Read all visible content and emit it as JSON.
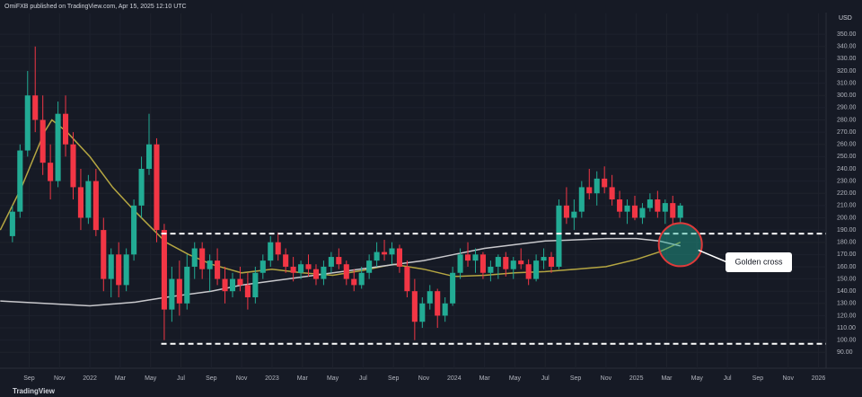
{
  "chart_data": {
    "type": "candlestick",
    "title": "OmiFXB published on TradingView.com, Apr 15, 2025 12:10 UTC",
    "y_axis_label": "USD",
    "source": "TradingView",
    "up_color": "#22ab94",
    "down_color": "#f23645",
    "x": [
      -5.1,
      -4.6,
      -4.1,
      -3.6,
      -3.1,
      -2.6,
      -2.1,
      -1.6,
      -1.1,
      -0.6,
      -0.1,
      0.4,
      0.9,
      1.4,
      1.9,
      2.4,
      2.9,
      3.4,
      3.9,
      4.4,
      4.9,
      5.4,
      5.9,
      6.4,
      6.9,
      7.4,
      7.9,
      8.4,
      8.9,
      9.4,
      9.9,
      10.4,
      10.9,
      11.4,
      11.9,
      12.4,
      12.9,
      13.4,
      13.9,
      14.4,
      14.9,
      15.4,
      15.9,
      16.4,
      16.9,
      17.4,
      17.9,
      18.4,
      18.9,
      19.4,
      19.9,
      20.4,
      20.9,
      21.4,
      21.9,
      22.4,
      22.9,
      23.4,
      23.9,
      24.4,
      24.9,
      25.4,
      25.9,
      26.4,
      26.9,
      27.4,
      27.9,
      28.4,
      28.9,
      29.4,
      29.9,
      30.4,
      30.9,
      31.4,
      31.9,
      32.4,
      32.9,
      33.4,
      33.9,
      34.4,
      34.9,
      35.4,
      35.9,
      36.4,
      36.9,
      37.4,
      37.9,
      38.4,
      38.9
    ],
    "open": [
      185,
      205,
      255,
      300,
      280,
      245,
      230,
      285,
      260,
      225,
      200,
      230,
      190,
      150,
      170,
      145,
      170,
      210,
      240,
      260,
      190,
      125,
      150,
      130,
      160,
      175,
      158,
      165,
      150,
      140,
      150,
      145,
      135,
      155,
      165,
      180,
      170,
      160,
      155,
      162,
      158,
      150,
      160,
      168,
      162,
      150,
      145,
      155,
      165,
      172,
      170,
      175,
      160,
      140,
      115,
      130,
      140,
      120,
      130,
      155,
      170,
      165,
      170,
      155,
      160,
      168,
      158,
      165,
      162,
      150,
      165,
      168,
      160,
      210,
      200,
      205,
      225,
      220,
      232,
      225,
      215,
      205,
      210,
      200,
      208,
      215,
      205,
      212,
      200
    ],
    "high": [
      210,
      260,
      320,
      340,
      300,
      260,
      295,
      300,
      270,
      240,
      235,
      240,
      200,
      175,
      180,
      175,
      215,
      250,
      285,
      265,
      195,
      160,
      165,
      170,
      180,
      180,
      170,
      175,
      160,
      155,
      160,
      155,
      160,
      170,
      185,
      188,
      175,
      168,
      165,
      170,
      162,
      165,
      172,
      175,
      165,
      158,
      160,
      170,
      180,
      182,
      180,
      178,
      165,
      150,
      135,
      145,
      142,
      135,
      160,
      175,
      180,
      175,
      172,
      165,
      170,
      172,
      168,
      175,
      166,
      170,
      175,
      172,
      215,
      225,
      215,
      230,
      240,
      238,
      242,
      235,
      222,
      215,
      218,
      212,
      220,
      222,
      215,
      218,
      212
    ],
    "low": [
      180,
      200,
      250,
      270,
      235,
      215,
      225,
      250,
      215,
      190,
      195,
      185,
      140,
      135,
      135,
      140,
      165,
      200,
      235,
      180,
      100,
      115,
      120,
      125,
      150,
      150,
      140,
      145,
      130,
      135,
      140,
      125,
      130,
      150,
      160,
      165,
      155,
      148,
      150,
      152,
      145,
      145,
      155,
      158,
      145,
      140,
      142,
      150,
      160,
      165,
      162,
      155,
      135,
      100,
      110,
      125,
      110,
      115,
      128,
      150,
      160,
      155,
      150,
      148,
      150,
      152,
      150,
      158,
      145,
      148,
      158,
      155,
      158,
      195,
      190,
      200,
      215,
      210,
      220,
      210,
      200,
      195,
      198,
      195,
      205,
      200,
      195,
      195,
      195
    ],
    "close": [
      205,
      255,
      300,
      280,
      245,
      230,
      285,
      260,
      225,
      200,
      230,
      190,
      150,
      170,
      145,
      170,
      210,
      240,
      260,
      190,
      125,
      150,
      130,
      160,
      175,
      158,
      165,
      150,
      140,
      150,
      145,
      135,
      155,
      165,
      180,
      170,
      160,
      155,
      162,
      158,
      150,
      160,
      168,
      162,
      150,
      145,
      155,
      165,
      172,
      170,
      175,
      160,
      140,
      115,
      130,
      140,
      120,
      130,
      155,
      170,
      165,
      170,
      155,
      160,
      168,
      158,
      165,
      162,
      150,
      165,
      168,
      160,
      210,
      200,
      205,
      225,
      220,
      232,
      225,
      215,
      205,
      210,
      200,
      208,
      215,
      205,
      212,
      200,
      210
    ],
    "series": [
      {
        "name": "MA 50",
        "color": "#b5a642",
        "x": [
          -5.9,
          -4.5,
          -3,
          -2.5,
          -1.5,
          0,
          1.5,
          3,
          5,
          6.5,
          8,
          10,
          12,
          14,
          16,
          18,
          20,
          22,
          24,
          26,
          28,
          30,
          32,
          34,
          36,
          37.5,
          38.9
        ],
        "values": [
          190,
          225,
          270,
          280,
          270,
          250,
          225,
          205,
          180,
          170,
          162,
          155,
          158,
          155,
          153,
          157,
          162,
          158,
          152,
          153,
          155,
          156,
          158,
          160,
          166,
          172,
          180
        ]
      },
      {
        "name": "MA 200",
        "color": "#c8c8cc",
        "x": [
          -5.9,
          -3,
          0,
          3,
          5,
          8,
          10,
          13,
          16,
          19,
          22,
          24,
          26,
          28,
          30,
          32,
          34,
          36,
          37.5,
          38.9
        ],
        "values": [
          132,
          130,
          128,
          131,
          135,
          140,
          145,
          150,
          155,
          160,
          165,
          170,
          175,
          178,
          181,
          182,
          183,
          183,
          181,
          177
        ]
      }
    ],
    "hlines": [
      187,
      97
    ],
    "hline_start": 4.7,
    "annotation": {
      "text": "Golden cross",
      "x": 38.9,
      "y": 178
    },
    "xlim": [
      -5.92,
      48.5
    ],
    "xticks": [
      {
        "value": -4,
        "label": "Sep"
      },
      {
        "value": -2,
        "label": "Nov"
      },
      {
        "value": 0,
        "label": "2022"
      },
      {
        "value": 2,
        "label": "Mar"
      },
      {
        "value": 4,
        "label": "May"
      },
      {
        "value": 6,
        "label": "Jul"
      },
      {
        "value": 8,
        "label": "Sep"
      },
      {
        "value": 10,
        "label": "Nov"
      },
      {
        "value": 12,
        "label": "2023"
      },
      {
        "value": 14,
        "label": "Mar"
      },
      {
        "value": 16,
        "label": "May"
      },
      {
        "value": 18,
        "label": "Jul"
      },
      {
        "value": 20,
        "label": "Sep"
      },
      {
        "value": 22,
        "label": "Nov"
      },
      {
        "value": 24,
        "label": "2024"
      },
      {
        "value": 26,
        "label": "Mar"
      },
      {
        "value": 28,
        "label": "May"
      },
      {
        "value": 30,
        "label": "Jul"
      },
      {
        "value": 32,
        "label": "Sep"
      },
      {
        "value": 34,
        "label": "Nov"
      },
      {
        "value": 36,
        "label": "2025"
      },
      {
        "value": 38,
        "label": "Mar"
      },
      {
        "value": 40,
        "label": "May"
      },
      {
        "value": 42,
        "label": "Jul"
      },
      {
        "value": 44,
        "label": "Sep"
      },
      {
        "value": 46,
        "label": "Nov"
      },
      {
        "value": 48,
        "label": "2026"
      }
    ],
    "ylim": [
      77,
      367
    ],
    "yticks": [
      {
        "value": 90,
        "label": "90.00"
      },
      {
        "value": 100,
        "label": "100.00"
      },
      {
        "value": 110,
        "label": "110.00"
      },
      {
        "value": 120,
        "label": "120.00"
      },
      {
        "value": 130,
        "label": "130.00"
      },
      {
        "value": 140,
        "label": "140.00"
      },
      {
        "value": 150,
        "label": "150.00"
      },
      {
        "value": 160,
        "label": "160.00"
      },
      {
        "value": 170,
        "label": "170.00"
      },
      {
        "value": 180,
        "label": "180.00"
      },
      {
        "value": 190,
        "label": "190.00"
      },
      {
        "value": 200,
        "label": "200.00"
      },
      {
        "value": 210,
        "label": "210.00"
      },
      {
        "value": 220,
        "label": "220.00"
      },
      {
        "value": 230,
        "label": "230.00"
      },
      {
        "value": 240,
        "label": "240.00"
      },
      {
        "value": 250,
        "label": "250.00"
      },
      {
        "value": 260,
        "label": "260.00"
      },
      {
        "value": 270,
        "label": "270.00"
      },
      {
        "value": 280,
        "label": "280.00"
      },
      {
        "value": 290,
        "label": "290.00"
      },
      {
        "value": 300,
        "label": "300.00"
      },
      {
        "value": 310,
        "label": "310.00"
      },
      {
        "value": 320,
        "label": "320.00"
      },
      {
        "value": 330,
        "label": "330.00"
      },
      {
        "value": 340,
        "label": "340.00"
      },
      {
        "value": 350,
        "label": "350.00"
      }
    ],
    "grid": true
  }
}
